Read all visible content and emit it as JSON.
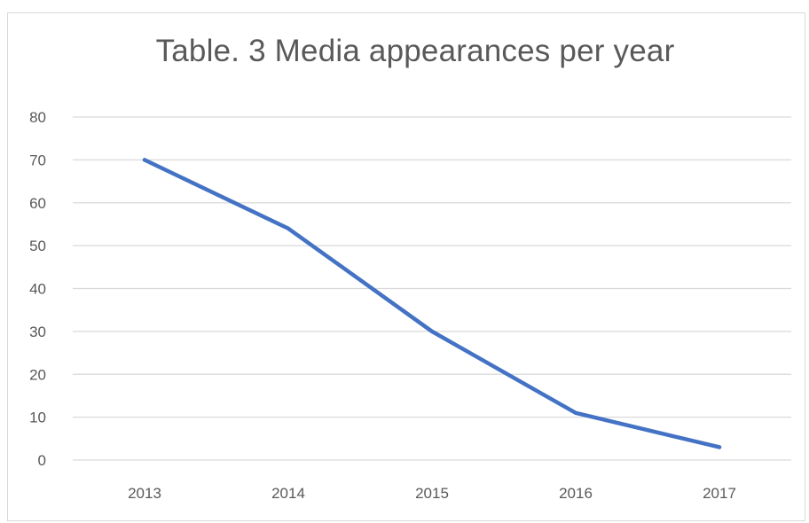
{
  "chart_data": {
    "type": "line",
    "title": "Table. 3 Media appearances per year",
    "xlabel": "",
    "ylabel": "",
    "categories": [
      "2013",
      "2014",
      "2015",
      "2016",
      "2017"
    ],
    "series": [
      {
        "values": [
          70,
          54,
          30,
          11,
          3
        ]
      }
    ],
    "ylim": [
      0,
      80
    ],
    "yticks": [
      "0",
      "10",
      "20",
      "30",
      "40",
      "50",
      "60",
      "70",
      "80"
    ],
    "grid": true,
    "legend": "none",
    "colors": {
      "line": "#4472c4",
      "grid": "#d9d9d9",
      "text": "#595959"
    }
  }
}
